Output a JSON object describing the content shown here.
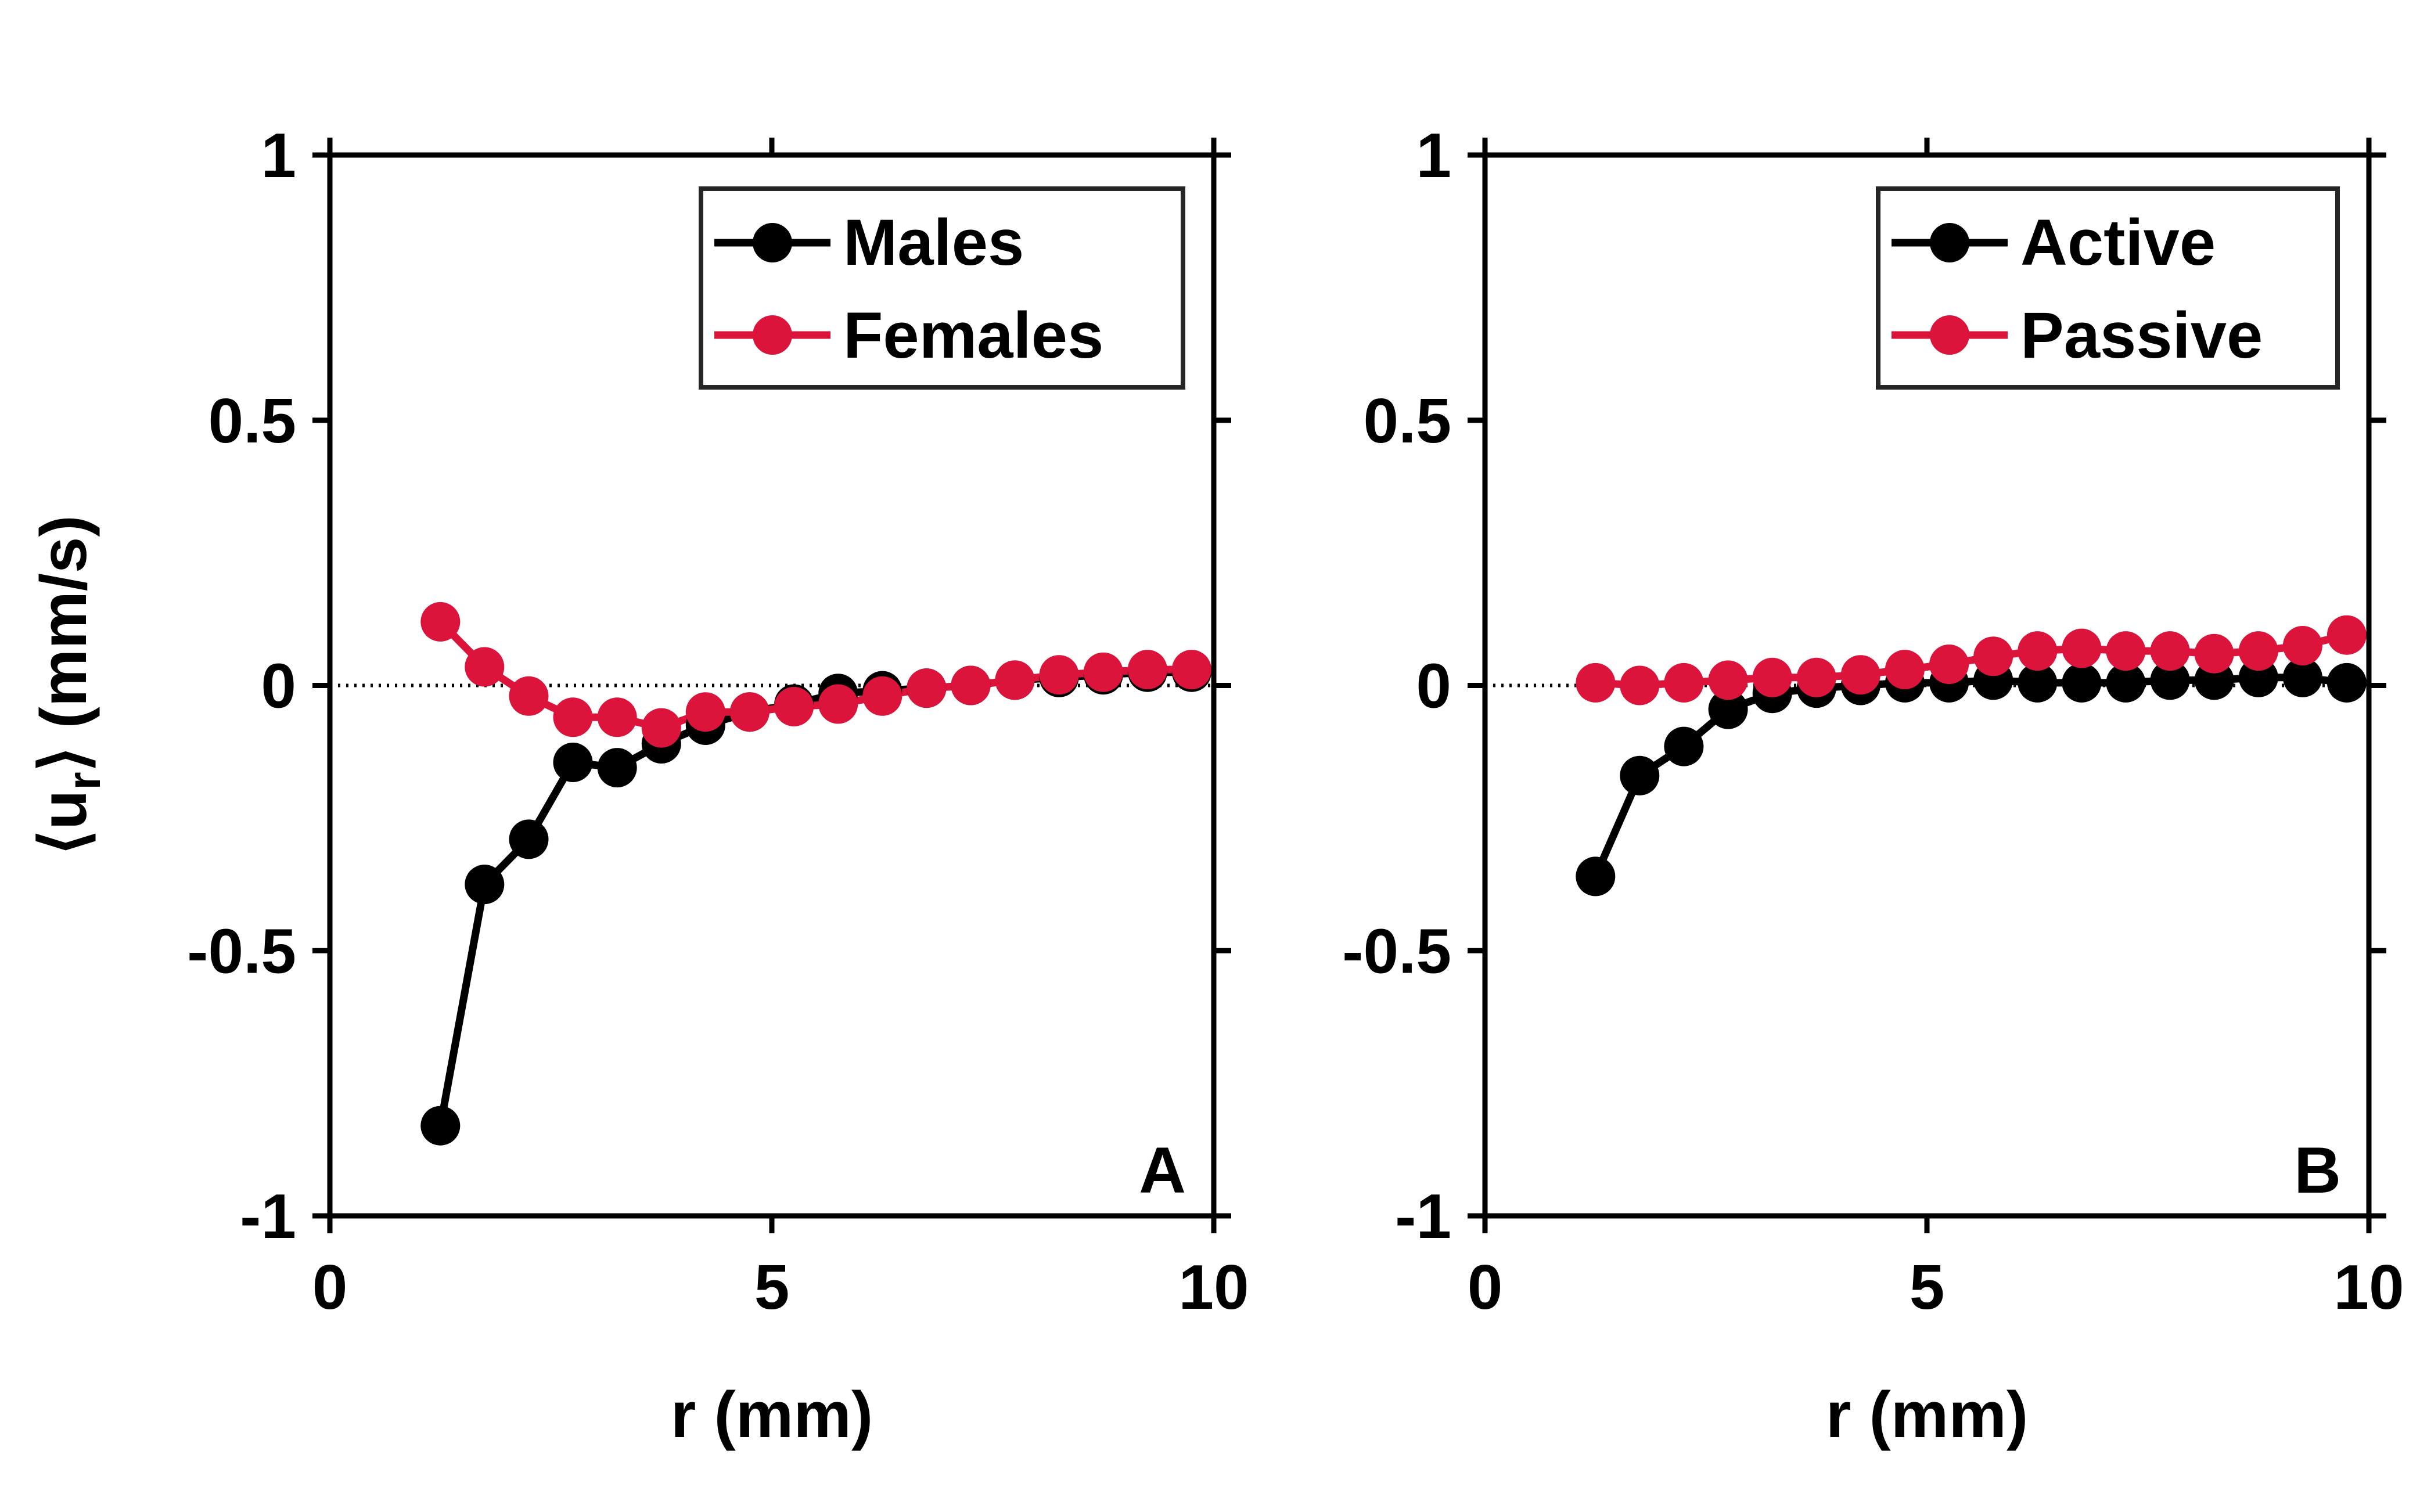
{
  "chart_data": [
    {
      "type": "line",
      "panel_label": "A",
      "xlabel": "r (mm)",
      "ylabel": "⟨u",
      "ylabel_sub": "r",
      "ylabel_tail": "⟩ (mm/s)",
      "xlim": [
        0,
        10
      ],
      "ylim": [
        -1,
        1
      ],
      "xticks": [
        "0",
        "5",
        "10"
      ],
      "yticks": [
        "-1",
        "-0.5",
        "0",
        "0.5",
        "1"
      ],
      "xtick_values": [
        0,
        5,
        10
      ],
      "ytick_values": [
        -1,
        -0.5,
        0,
        0.5,
        1
      ],
      "legend_position": "top-right",
      "zero_line": true,
      "series": [
        {
          "name": "Males",
          "color": "#000000",
          "x": [
            1.25,
            1.75,
            2.25,
            2.75,
            3.25,
            3.75,
            4.25,
            4.75,
            5.25,
            5.75,
            6.25,
            6.75,
            7.25,
            7.75,
            8.25,
            8.75,
            9.25,
            9.75
          ],
          "y": [
            -0.83,
            -0.375,
            -0.29,
            -0.145,
            -0.155,
            -0.11,
            -0.075,
            -0.05,
            -0.035,
            -0.015,
            -0.01,
            -0.005,
            0.0,
            0.01,
            0.015,
            0.02,
            0.025,
            0.025
          ]
        },
        {
          "name": "Females",
          "color": "#dc143c",
          "x": [
            1.25,
            1.75,
            2.25,
            2.75,
            3.25,
            3.75,
            4.25,
            4.75,
            5.25,
            5.75,
            6.25,
            6.75,
            7.25,
            7.75,
            8.25,
            8.75,
            9.25,
            9.75
          ],
          "y": [
            0.12,
            0.035,
            -0.02,
            -0.06,
            -0.06,
            -0.08,
            -0.05,
            -0.05,
            -0.04,
            -0.035,
            -0.02,
            -0.005,
            0.0,
            0.01,
            0.02,
            0.025,
            0.03,
            0.03
          ]
        }
      ]
    },
    {
      "type": "line",
      "panel_label": "B",
      "xlabel": "r (mm)",
      "xlim": [
        0,
        10
      ],
      "ylim": [
        -1,
        1
      ],
      "xticks": [
        "0",
        "5",
        "10"
      ],
      "yticks": [
        "-1",
        "-0.5",
        "0",
        "0.5",
        "1"
      ],
      "xtick_values": [
        0,
        5,
        10
      ],
      "ytick_values": [
        -1,
        -0.5,
        0,
        0.5,
        1
      ],
      "legend_position": "top-right",
      "zero_line": true,
      "series": [
        {
          "name": "Active",
          "color": "#000000",
          "x": [
            1.25,
            1.75,
            2.25,
            2.75,
            3.25,
            3.75,
            4.25,
            4.75,
            5.25,
            5.75,
            6.25,
            6.75,
            7.25,
            7.75,
            8.25,
            8.75,
            9.25,
            9.75
          ],
          "y": [
            -0.36,
            -0.17,
            -0.115,
            -0.045,
            -0.015,
            -0.005,
            0.0,
            0.005,
            0.005,
            0.01,
            0.005,
            0.005,
            0.005,
            0.01,
            0.01,
            0.015,
            0.015,
            0.005
          ]
        },
        {
          "name": "Passive",
          "color": "#dc143c",
          "x": [
            1.25,
            1.75,
            2.25,
            2.75,
            3.25,
            3.75,
            4.25,
            4.75,
            5.25,
            5.75,
            6.25,
            6.75,
            7.25,
            7.75,
            8.25,
            8.75,
            9.25,
            9.75
          ],
          "y": [
            0.005,
            0.0,
            0.005,
            0.01,
            0.015,
            0.015,
            0.02,
            0.03,
            0.04,
            0.055,
            0.065,
            0.07,
            0.065,
            0.065,
            0.06,
            0.065,
            0.075,
            0.095
          ]
        }
      ]
    }
  ]
}
